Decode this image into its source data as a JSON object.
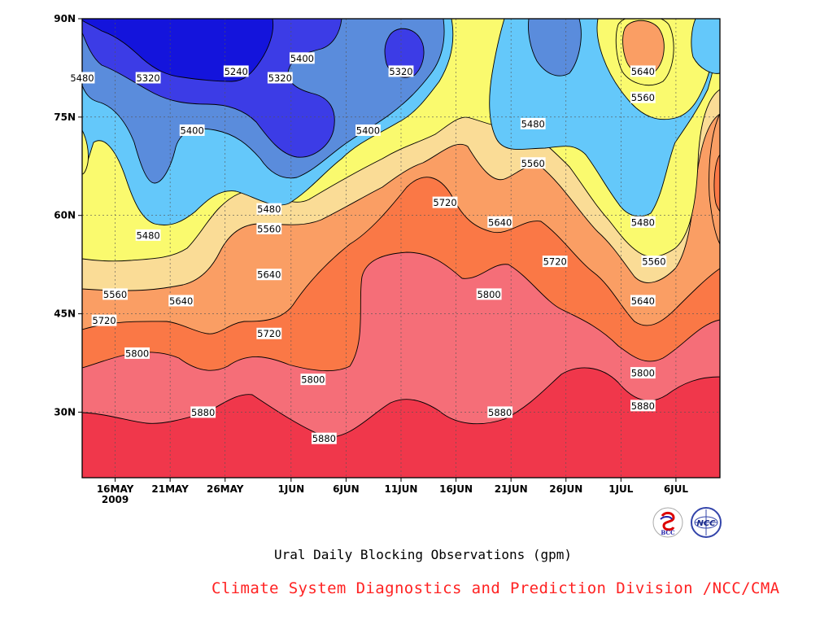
{
  "chart_data": {
    "type": "heatmap",
    "title": "Ural Daily Blocking Observations (gpm)",
    "credit": "Climate System Diagnostics and Prediction Division /NCC/CMA",
    "x_ticks": [
      "16MAY",
      "21MAY",
      "26MAY",
      "1JUN",
      "6JUN",
      "11JUN",
      "16JUN",
      "21JUN",
      "26JUN",
      "1JUL",
      "6JUL"
    ],
    "x_year_label": "2009",
    "y_ticks": [
      "30N",
      "45N",
      "60N",
      "75N",
      "90N"
    ],
    "x_range": [
      "2009-05-13",
      "2009-07-10"
    ],
    "y_range": [
      20,
      90
    ],
    "grid": "dashed",
    "levels": [
      5240,
      5320,
      5400,
      5480,
      5560,
      5640,
      5720,
      5800,
      5880
    ],
    "fill_colors": {
      "below_5240": "#1414dc",
      "5240_5320": "#3c3ce6",
      "5320_5400": "#5a64f0",
      "5400_5480": "#5a8cdc",
      "5480_5560": "#64c8fa",
      "5560_5640": "#fafa6e",
      "5640_5720": "#fadc96",
      "5720_5800": "#fa9e64",
      "5800_5880": "#fa7846",
      "5880_above_1": "#f56e78",
      "above_5880": "#f0374b"
    },
    "contour_labels": [
      {
        "text": "5480",
        "x": "2009-05-13",
        "y": 81
      },
      {
        "text": "5320",
        "x": "2009-05-19",
        "y": 81
      },
      {
        "text": "5240",
        "x": "2009-05-27",
        "y": 82
      },
      {
        "text": "5320",
        "x": "2009-05-31",
        "y": 81
      },
      {
        "text": "5400",
        "x": "2009-06-02",
        "y": 84
      },
      {
        "text": "5320",
        "x": "2009-06-11",
        "y": 82
      },
      {
        "text": "5400",
        "x": "2009-05-23",
        "y": 73
      },
      {
        "text": "5400",
        "x": "2009-06-08",
        "y": 73
      },
      {
        "text": "5480",
        "x": "2009-06-23",
        "y": 74
      },
      {
        "text": "5640",
        "x": "2009-07-03",
        "y": 82
      },
      {
        "text": "5560",
        "x": "2009-07-03",
        "y": 78
      },
      {
        "text": "5560",
        "x": "2009-06-23",
        "y": 68
      },
      {
        "text": "5720",
        "x": "2009-06-15",
        "y": 62
      },
      {
        "text": "5480",
        "x": "2009-05-30",
        "y": 61
      },
      {
        "text": "5560",
        "x": "2009-05-30",
        "y": 58
      },
      {
        "text": "5640",
        "x": "2009-06-20",
        "y": 59
      },
      {
        "text": "5480",
        "x": "2009-07-03",
        "y": 59
      },
      {
        "text": "5480",
        "x": "2009-05-19",
        "y": 57
      },
      {
        "text": "5640",
        "x": "2009-05-30",
        "y": 51
      },
      {
        "text": "5720",
        "x": "2009-06-25",
        "y": 53
      },
      {
        "text": "5560",
        "x": "2009-07-04",
        "y": 53
      },
      {
        "text": "5800",
        "x": "2009-06-19",
        "y": 48
      },
      {
        "text": "5560",
        "x": "2009-05-16",
        "y": 48
      },
      {
        "text": "5640",
        "x": "2009-05-22",
        "y": 47
      },
      {
        "text": "5640",
        "x": "2009-07-03",
        "y": 47
      },
      {
        "text": "5720",
        "x": "2009-05-15",
        "y": 44
      },
      {
        "text": "5720",
        "x": "2009-05-30",
        "y": 42
      },
      {
        "text": "5800",
        "x": "2009-05-18",
        "y": 39
      },
      {
        "text": "5800",
        "x": "2009-07-03",
        "y": 36
      },
      {
        "text": "5800",
        "x": "2009-06-03",
        "y": 35
      },
      {
        "text": "5880",
        "x": "2009-05-24",
        "y": 30
      },
      {
        "text": "5880",
        "x": "2009-06-20",
        "y": 30
      },
      {
        "text": "5880",
        "x": "2009-07-03",
        "y": 31
      },
      {
        "text": "5880",
        "x": "2009-06-04",
        "y": 26
      }
    ]
  }
}
